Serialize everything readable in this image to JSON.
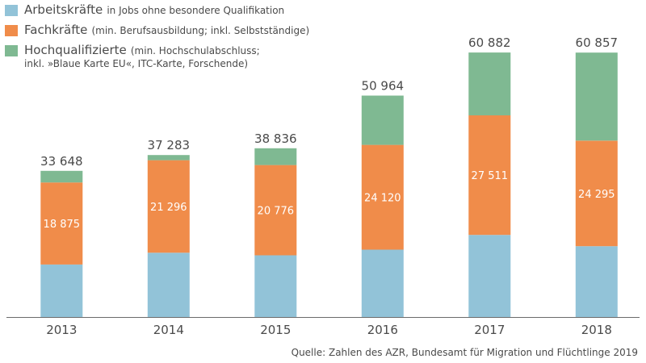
{
  "legend": [
    {
      "name": "Arbeitskräfte",
      "note": "in Jobs ohne besondere Qualifikation",
      "note2": "",
      "color": "#92c3d8"
    },
    {
      "name": "Fachkräfte",
      "note": "(min. Berufsausbildung; inkl. Selbstständige)",
      "note2": "",
      "color": "#f08c4a"
    },
    {
      "name": "Hochqualifizierte",
      "note": "(min. Hochschulabschluss;",
      "note2": "inkl. »Blaue Karte EU«, ITC-Karte, Forschende)",
      "color": "#7fb992"
    }
  ],
  "source": "Quelle: Zahlen des AZR, Bundesamt für Migration und Flüchtlinge 2019",
  "chart_data": {
    "type": "bar",
    "stacked": true,
    "categories": [
      "2013",
      "2014",
      "2015",
      "2016",
      "2017",
      "2018"
    ],
    "totals": [
      33648,
      37283,
      38836,
      50964,
      60882,
      60857
    ],
    "total_labels": [
      "33 648",
      "37 283",
      "38 836",
      "50 964",
      "60 882",
      "60 857"
    ],
    "series": [
      {
        "name": "Arbeitskräfte",
        "color": "#92c3d8",
        "values": [
          12100,
          14800,
          14200,
          15500,
          18900,
          16300
        ]
      },
      {
        "name": "Fachkräfte",
        "color": "#f08c4a",
        "values": [
          18875,
          21296,
          20776,
          24120,
          27511,
          24295
        ],
        "labels": [
          "18 875",
          "21 296",
          "20 776",
          "24 120",
          "27 511",
          "24 295"
        ]
      },
      {
        "name": "Hochqualifizierte",
        "color": "#7fb992",
        "values": [
          2673,
          1187,
          3860,
          11344,
          14471,
          20262
        ]
      }
    ],
    "ylim": [
      0,
      70000
    ],
    "grid": false,
    "legend_position": "top-left"
  }
}
